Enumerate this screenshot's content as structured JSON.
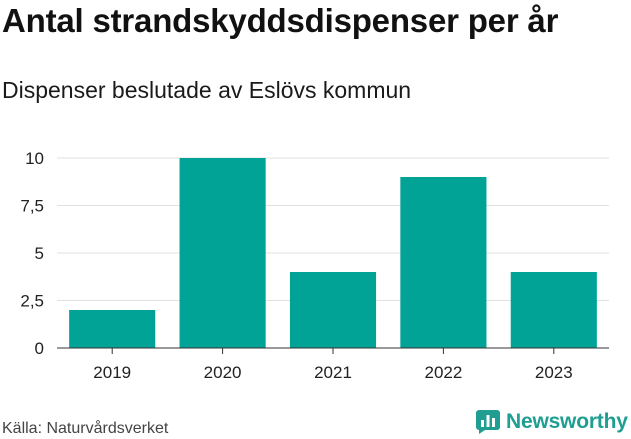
{
  "chart_data": {
    "type": "bar",
    "title": "Antal strandskyddsdispenser per år",
    "subtitle": "Dispenser beslutade av Eslövs kommun",
    "categories": [
      "2019",
      "2020",
      "2021",
      "2022",
      "2023"
    ],
    "values": [
      2,
      10,
      4,
      9,
      4
    ],
    "xlabel": "",
    "ylabel": "",
    "ylim": [
      0,
      10
    ],
    "yticks": [
      0,
      2.5,
      5,
      7.5,
      10
    ],
    "ytick_labels": [
      "0",
      "2,5",
      "5",
      "7,5",
      "10"
    ],
    "grid": true,
    "legend": "none",
    "bar_color": "#00a396"
  },
  "footer": {
    "source": "Källa: Naturvårdsverket",
    "brand_name": "Newsworthy",
    "brand_color": "#1f9e91",
    "brand_icon": "bar-chart-badge-icon"
  }
}
